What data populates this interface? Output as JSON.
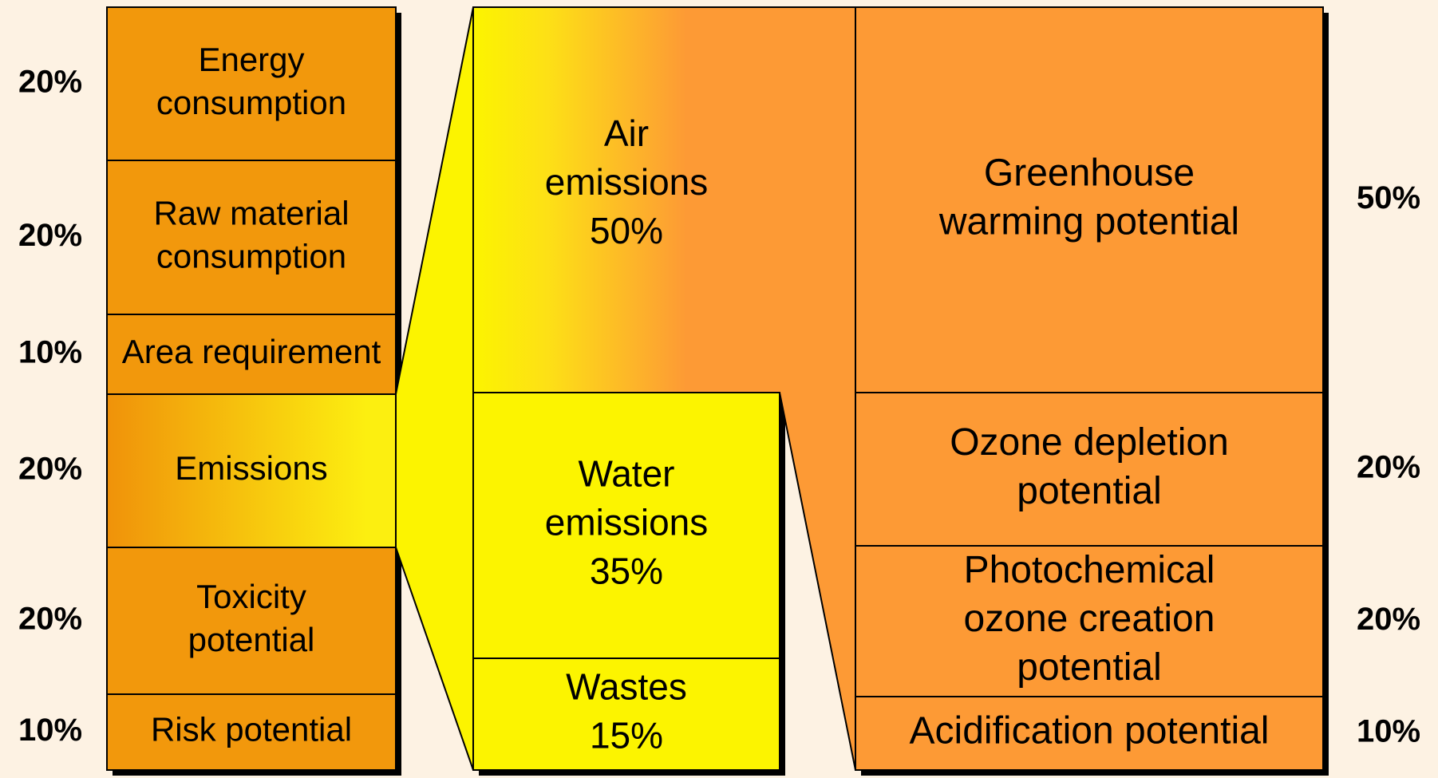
{
  "left": [
    {
      "pct": "20%",
      "lines": [
        "Energy",
        "consumption"
      ]
    },
    {
      "pct": "20%",
      "lines": [
        "Raw material",
        "consumption"
      ]
    },
    {
      "pct": "10%",
      "lines": [
        "Area requirement"
      ]
    },
    {
      "pct": "20%",
      "lines": [
        "Emissions"
      ]
    },
    {
      "pct": "20%",
      "lines": [
        "Toxicity",
        "potential"
      ]
    },
    {
      "pct": "10%",
      "lines": [
        "Risk potential"
      ]
    }
  ],
  "middle": [
    {
      "lines": [
        "Air",
        "emissions",
        "50%"
      ]
    },
    {
      "lines": [
        "Water",
        "emissions",
        "35%"
      ]
    },
    {
      "lines": [
        "Wastes",
        "15%"
      ]
    }
  ],
  "right": [
    {
      "pct": "50%",
      "lines": [
        "Greenhouse",
        "warming potential"
      ]
    },
    {
      "pct": "20%",
      "lines": [
        "Ozone depletion",
        "potential"
      ]
    },
    {
      "pct": "20%",
      "lines": [
        "Photochemical",
        "ozone creation",
        "potential"
      ]
    },
    {
      "pct": "10%",
      "lines": [
        "Acidification potential"
      ]
    }
  ]
}
